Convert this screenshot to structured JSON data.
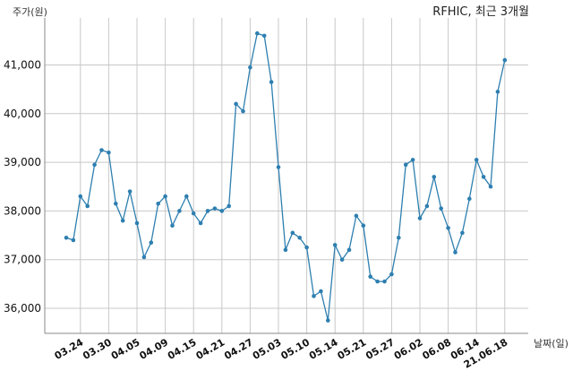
{
  "chart_data": {
    "type": "line",
    "title": "RFHIC, 최근 3개월",
    "ylabel": "주가(원)",
    "xlabel": "날짜(일)",
    "ylim": [
      35500,
      41800
    ],
    "grid": true,
    "x_tick_labels": [
      "03.24",
      "03.30",
      "04.05",
      "04.09",
      "04.15",
      "04.21",
      "04.27",
      "05.03",
      "05.10",
      "05.14",
      "05.21",
      "05.27",
      "06.02",
      "06.08",
      "06.14",
      "21.06.18"
    ],
    "x_tick_positions": [
      2,
      6,
      10,
      14,
      18,
      22,
      26,
      30,
      34,
      38,
      42,
      46,
      50,
      54,
      58,
      62
    ],
    "y_ticks": [
      36000,
      37000,
      38000,
      39000,
      40000,
      41000
    ],
    "y_tick_labels": [
      "36,000",
      "37,000",
      "38,000",
      "39,000",
      "40,000",
      "41,000"
    ],
    "series": [
      {
        "color": "#2e7fb0",
        "values": [
          37450,
          37400,
          38300,
          38100,
          38950,
          39250,
          39200,
          38150,
          37800,
          38400,
          37750,
          37050,
          37350,
          38150,
          38300,
          37700,
          38000,
          38300,
          37950,
          37750,
          38000,
          38050,
          38000,
          38100,
          40200,
          40050,
          40950,
          41650,
          41600,
          40650,
          38900,
          37200,
          37550,
          37450,
          37250,
          36250,
          36350,
          35750,
          37300,
          37000,
          37200,
          37900,
          37700,
          36650,
          36550,
          36550,
          36700,
          37450,
          38950,
          39050,
          37850,
          38100,
          38700,
          38050,
          37650,
          37150,
          37550,
          38250,
          39050,
          38700,
          38500,
          40450,
          41100
        ]
      }
    ]
  }
}
